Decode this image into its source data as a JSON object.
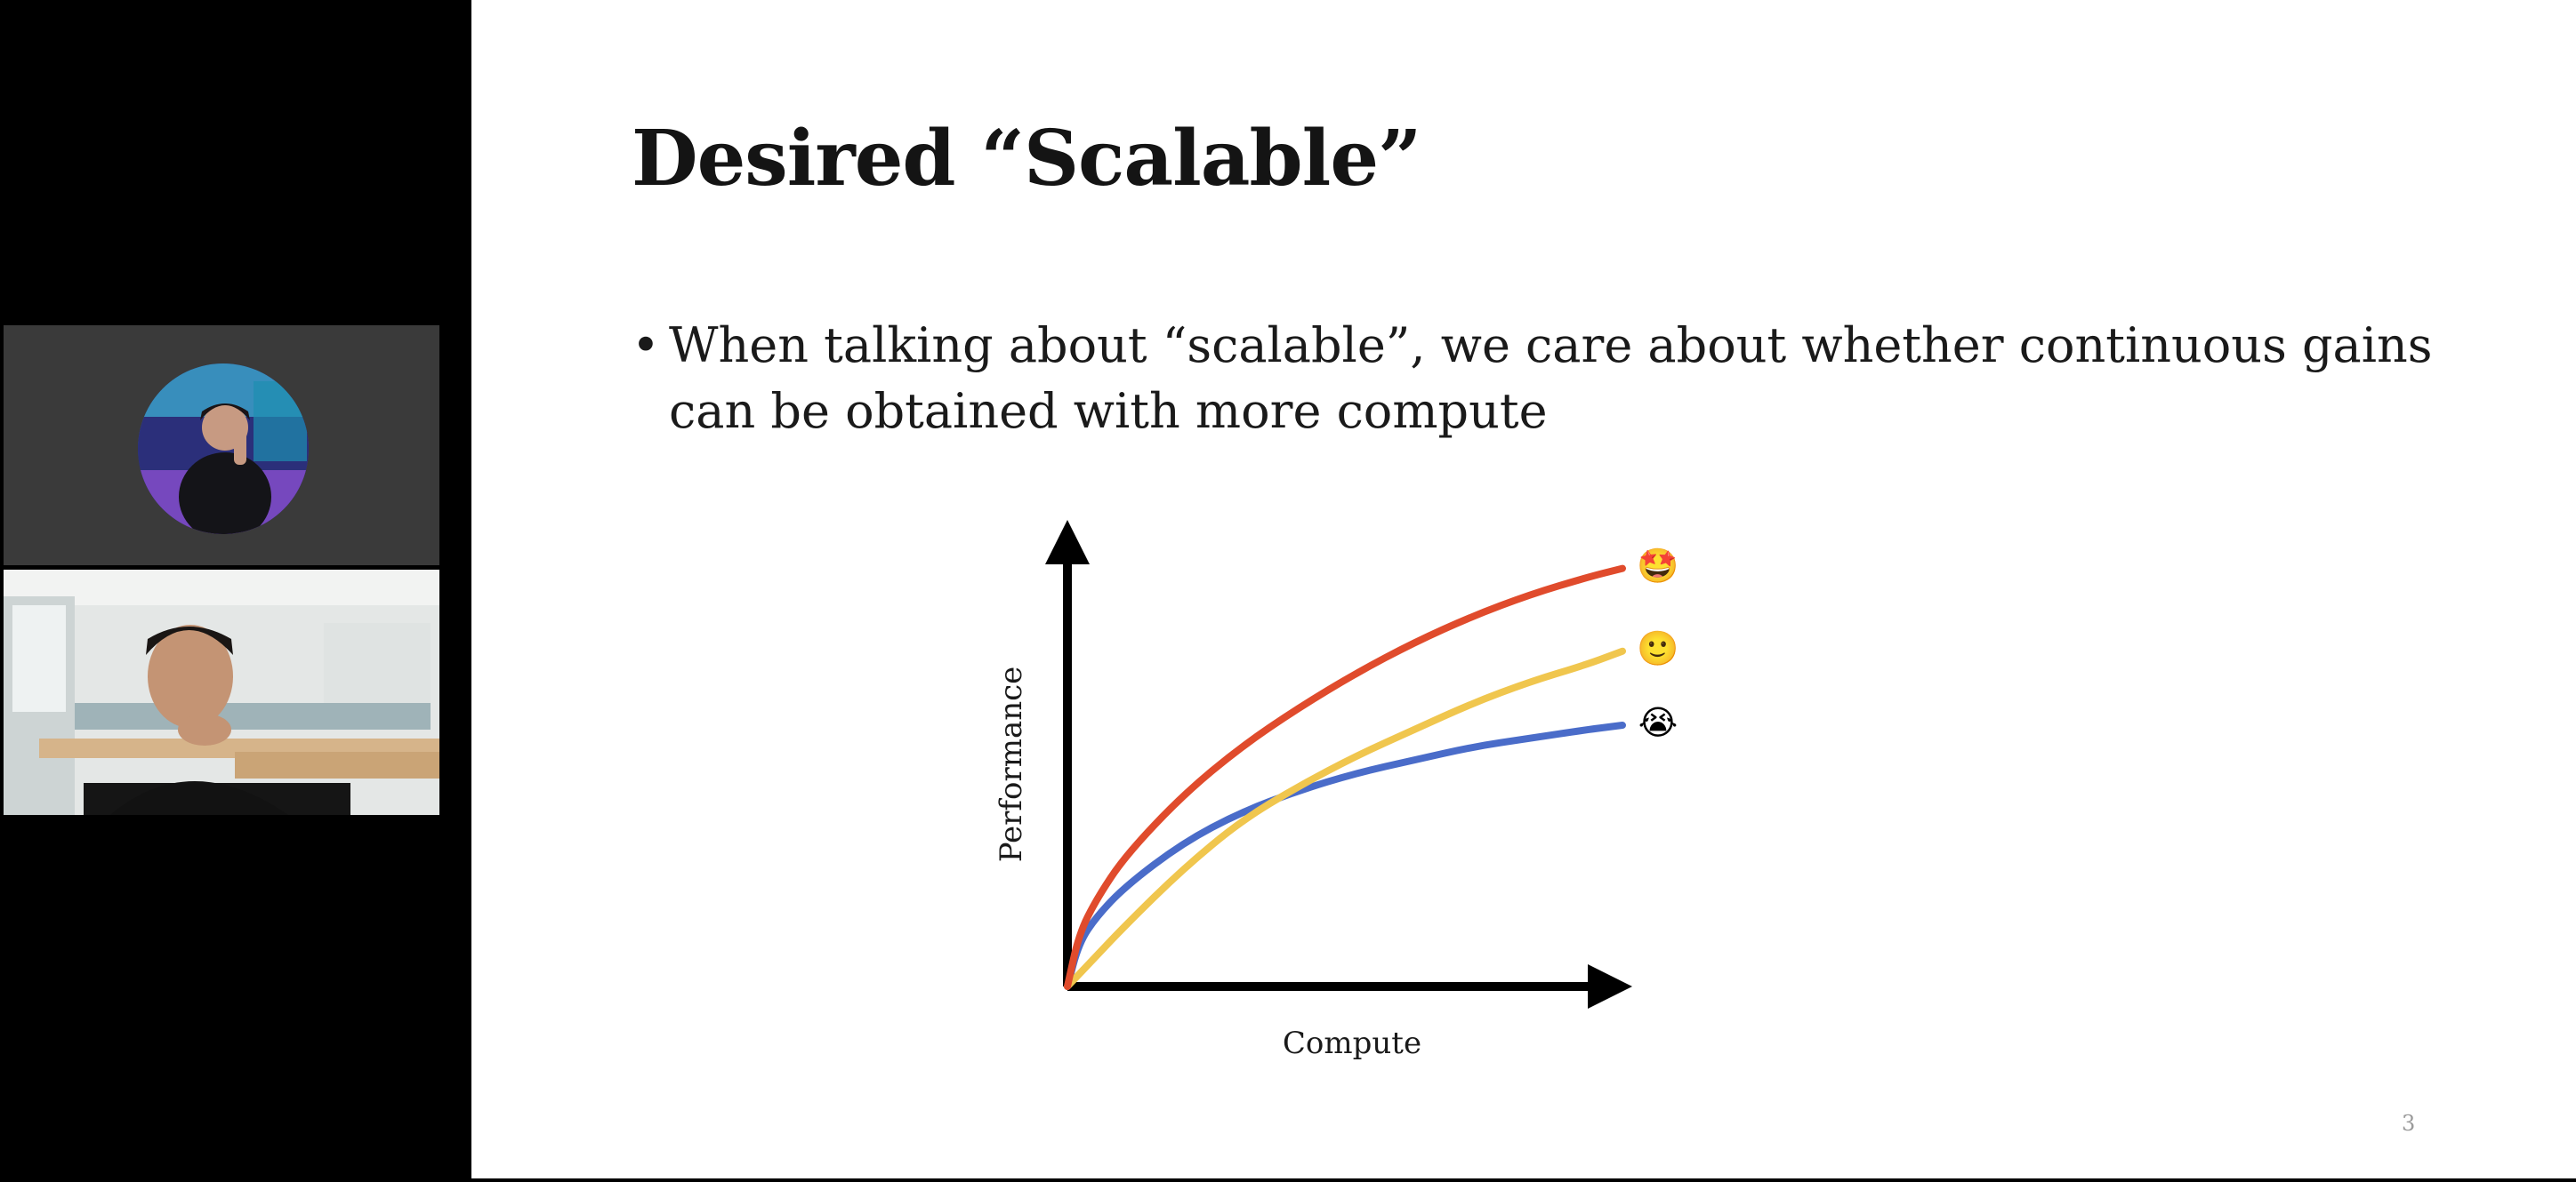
{
  "slide": {
    "title": "Desired “Scalable”",
    "bullet": "When talking about “scalable”, we care about whether continuous gains can be obtained with more compute",
    "bullet_marker": "•",
    "page_number": "3"
  },
  "participants": [
    {
      "kind": "avatar"
    },
    {
      "kind": "camera"
    }
  ],
  "chart_data": {
    "type": "line",
    "xlabel": "Compute",
    "ylabel": "Performance",
    "xlim": [
      0,
      1
    ],
    "ylim": [
      0,
      1
    ],
    "grid": false,
    "series": [
      {
        "color": "#e04b2c",
        "emoji": "🤩",
        "x": [
          0,
          0.02,
          0.05,
          0.1,
          0.2,
          0.3,
          0.4,
          0.5,
          0.6,
          0.7,
          0.8,
          0.9,
          0.96
        ],
        "y": [
          0,
          0.12,
          0.2,
          0.3,
          0.44,
          0.55,
          0.64,
          0.72,
          0.79,
          0.85,
          0.9,
          0.94,
          0.96
        ]
      },
      {
        "color": "#f0c64e",
        "emoji": "🙂",
        "x": [
          0,
          0.05,
          0.1,
          0.2,
          0.3,
          0.4,
          0.5,
          0.6,
          0.7,
          0.8,
          0.9,
          0.96
        ],
        "y": [
          0,
          0.07,
          0.14,
          0.27,
          0.38,
          0.46,
          0.53,
          0.59,
          0.65,
          0.7,
          0.74,
          0.77
        ]
      },
      {
        "color": "#4a6cc9",
        "emoji": "😭",
        "x": [
          0,
          0.02,
          0.05,
          0.1,
          0.2,
          0.3,
          0.4,
          0.5,
          0.6,
          0.7,
          0.8,
          0.9,
          0.96
        ],
        "y": [
          0,
          0.1,
          0.16,
          0.23,
          0.33,
          0.4,
          0.45,
          0.49,
          0.52,
          0.55,
          0.57,
          0.59,
          0.6
        ]
      }
    ]
  }
}
